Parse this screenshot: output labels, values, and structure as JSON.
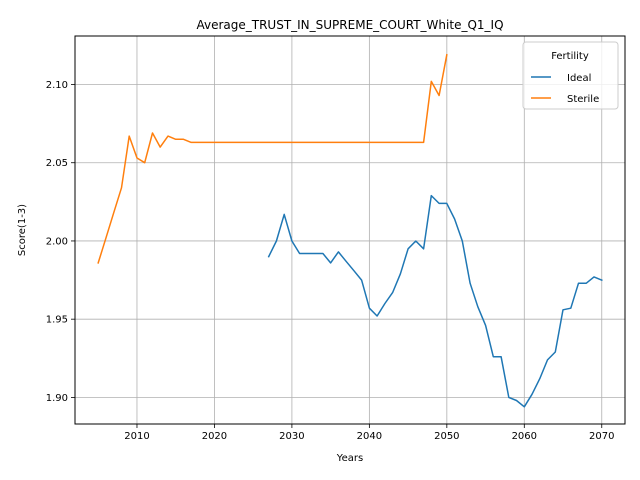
{
  "chart_data": {
    "type": "line",
    "title": "Average_TRUST_IN_SUPREME_COURT_White_Q1_IQ",
    "xlabel": "Years",
    "ylabel": "Score(1-3)",
    "xlim": [
      2002,
      2073
    ],
    "ylim": [
      1.883,
      2.131
    ],
    "xticks": [
      2010,
      2020,
      2030,
      2040,
      2050,
      2060,
      2070
    ],
    "yticks": [
      1.9,
      1.95,
      2.0,
      2.05,
      2.1
    ],
    "ytick_labels": [
      "1.90",
      "1.95",
      "2.00",
      "2.05",
      "2.10"
    ],
    "grid": true,
    "legend": {
      "title": "Fertility",
      "placement": "top-right"
    },
    "series": [
      {
        "name": "Ideal",
        "color": "#1f77b4",
        "points": [
          [
            2027,
            1.99
          ],
          [
            2028,
            2.0
          ],
          [
            2029,
            2.017
          ],
          [
            2030,
            2.0
          ],
          [
            2031,
            1.992
          ],
          [
            2032,
            1.992
          ],
          [
            2033,
            1.992
          ],
          [
            2034,
            1.992
          ],
          [
            2035,
            1.986
          ],
          [
            2036,
            1.993
          ],
          [
            2037,
            1.987
          ],
          [
            2038,
            1.981
          ],
          [
            2039,
            1.975
          ],
          [
            2040,
            1.957
          ],
          [
            2041,
            1.952
          ],
          [
            2042,
            1.96
          ],
          [
            2043,
            1.967
          ],
          [
            2044,
            1.979
          ],
          [
            2045,
            1.995
          ],
          [
            2046,
            2.0
          ],
          [
            2047,
            1.995
          ],
          [
            2048,
            2.029
          ],
          [
            2049,
            2.024
          ],
          [
            2050,
            2.024
          ],
          [
            2051,
            2.014
          ],
          [
            2052,
            2.0
          ],
          [
            2053,
            1.973
          ],
          [
            2054,
            1.958
          ],
          [
            2055,
            1.946
          ],
          [
            2056,
            1.926
          ],
          [
            2057,
            1.926
          ],
          [
            2058,
            1.9
          ],
          [
            2059,
            1.898
          ],
          [
            2060,
            1.894
          ],
          [
            2061,
            1.902
          ],
          [
            2062,
            1.912
          ],
          [
            2063,
            1.924
          ],
          [
            2064,
            1.929
          ],
          [
            2065,
            1.956
          ],
          [
            2066,
            1.957
          ],
          [
            2067,
            1.973
          ],
          [
            2068,
            1.973
          ],
          [
            2069,
            1.977
          ],
          [
            2070,
            1.975
          ]
        ]
      },
      {
        "name": "Sterile",
        "color": "#ff7f0e",
        "points": [
          [
            2005,
            1.986
          ],
          [
            2006,
            2.002
          ],
          [
            2007,
            2.018
          ],
          [
            2008,
            2.034
          ],
          [
            2009,
            2.067
          ],
          [
            2010,
            2.053
          ],
          [
            2011,
            2.05
          ],
          [
            2012,
            2.069
          ],
          [
            2013,
            2.06
          ],
          [
            2014,
            2.067
          ],
          [
            2015,
            2.065
          ],
          [
            2016,
            2.065
          ],
          [
            2017,
            2.063
          ],
          [
            2020,
            2.063
          ],
          [
            2025,
            2.063
          ],
          [
            2030,
            2.063
          ],
          [
            2035,
            2.063
          ],
          [
            2040,
            2.063
          ],
          [
            2045,
            2.063
          ],
          [
            2047,
            2.063
          ],
          [
            2048,
            2.102
          ],
          [
            2049,
            2.093
          ],
          [
            2050,
            2.119
          ]
        ]
      }
    ]
  }
}
